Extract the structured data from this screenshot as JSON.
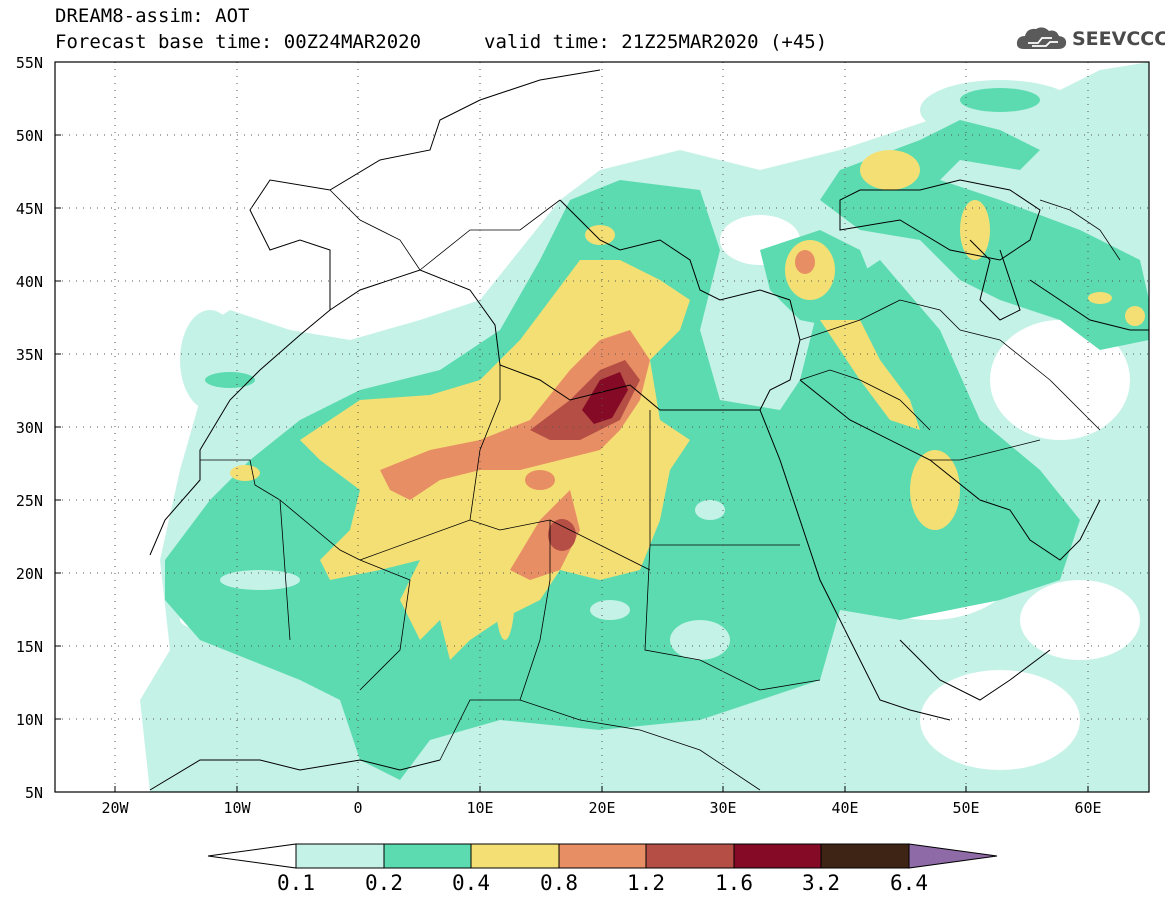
{
  "header": {
    "line1": "DREAM8-assim: AOT",
    "line2": "Forecast base time: 00Z24MAR2020",
    "line3": "valid time: 21Z25MAR2020 (+45)"
  },
  "logo": {
    "text": "SEEVCCC",
    "icon": "cloud-icon"
  },
  "map": {
    "projection": "lat-lon",
    "lon_range": [
      -25,
      65
    ],
    "lat_range": [
      5,
      55
    ],
    "lat_labels": [
      "5N",
      "10N",
      "15N",
      "20N",
      "25N",
      "30N",
      "35N",
      "40N",
      "45N",
      "50N",
      "55N"
    ],
    "lon_labels": [
      "20W",
      "10W",
      "0",
      "10E",
      "20E",
      "30E",
      "40E",
      "50E",
      "60E"
    ],
    "grid": "dotted"
  },
  "colorbar": {
    "labels": [
      "0.1",
      "0.2",
      "0.4",
      "0.8",
      "1.2",
      "1.6",
      "3.2",
      "6.4"
    ],
    "colors": [
      "#c5f2e6",
      "#5cdbb0",
      "#f4df74",
      "#e88e64",
      "#b54e44",
      "#840a26",
      "#3e2415",
      "#8e6aa6"
    ]
  }
}
